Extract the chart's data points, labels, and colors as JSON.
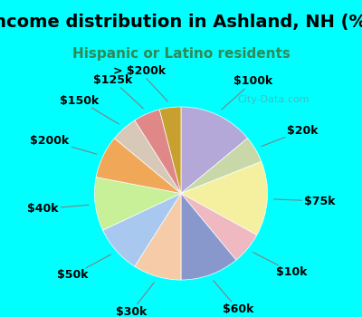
{
  "title": "Income distribution in Ashland, NH (%)",
  "subtitle": "Hispanic or Latino residents",
  "title_color": "#000000",
  "subtitle_color": "#2e8b57",
  "background_top": "#00ffff",
  "background_chart": "#e8f5e9",
  "watermark": "City-Data.com",
  "labels": [
    "$100k",
    "$20k",
    "$75k",
    "$10k",
    "$60k",
    "$30k",
    "$50k",
    "$40k",
    "$200k",
    "$150k",
    "$125k",
    "> $200k"
  ],
  "values": [
    14,
    5,
    14,
    6,
    11,
    9,
    9,
    10,
    8,
    5,
    5,
    4
  ],
  "colors": [
    "#b3a8d8",
    "#c8d8a8",
    "#f5f0a0",
    "#f0b8c0",
    "#8898cc",
    "#f5cba8",
    "#a8c8f0",
    "#c8f098",
    "#f0a858",
    "#d8c8b8",
    "#e08888",
    "#c8a030"
  ],
  "label_fontsize": 9,
  "title_fontsize": 14,
  "subtitle_fontsize": 11,
  "figsize": [
    4.0,
    3.5
  ],
  "dpi": 100
}
